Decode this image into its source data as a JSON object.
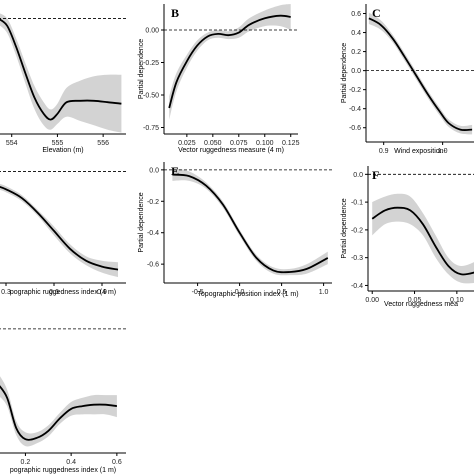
{
  "chart_data": [
    {
      "id": "elev",
      "type": "line",
      "panel_label": "",
      "xlabel": "Elevation (m)",
      "ylabel": "",
      "xticks": [
        554,
        555,
        556
      ],
      "yticks": [],
      "xlim": [
        553.7,
        556.5
      ],
      "ylim": [
        -0.8,
        0.1
      ],
      "ref_y": 0.0,
      "x": [
        553.7,
        553.9,
        554.1,
        554.3,
        554.5,
        554.7,
        554.85,
        555.0,
        555.2,
        555.5,
        555.8,
        556.1,
        556.4
      ],
      "y": [
        0.0,
        -0.05,
        -0.2,
        -0.38,
        -0.55,
        -0.66,
        -0.7,
        -0.66,
        -0.58,
        -0.57,
        -0.57,
        -0.58,
        -0.59
      ],
      "band_halfwidth": [
        0.04,
        0.05,
        0.06,
        0.07,
        0.08,
        0.08,
        0.07,
        0.07,
        0.1,
        0.14,
        0.17,
        0.19,
        0.2
      ]
    },
    {
      "id": "vrm4",
      "type": "line",
      "panel_label": "B",
      "xlabel": "Vector ruggedness measure (4 m)",
      "ylabel": "Partial dependence",
      "xticks": [
        0.025,
        0.05,
        0.075,
        0.1,
        0.125
      ],
      "xtick_labels": [
        "0.025",
        "0.050",
        "0.075",
        "0.100",
        "0.125"
      ],
      "yticks": [
        0.0,
        -0.25,
        -0.5,
        -0.75
      ],
      "ytick_labels": [
        "0.00",
        "-0.25",
        "-0.50",
        "-0.75"
      ],
      "xlim": [
        0.003,
        0.132
      ],
      "ylim": [
        -0.8,
        0.2
      ],
      "ref_y": 0.0,
      "x": [
        0.008,
        0.015,
        0.025,
        0.035,
        0.045,
        0.055,
        0.065,
        0.075,
        0.085,
        0.1,
        0.115,
        0.125
      ],
      "y": [
        -0.6,
        -0.4,
        -0.24,
        -0.12,
        -0.05,
        -0.03,
        -0.04,
        -0.02,
        0.04,
        0.09,
        0.11,
        0.1
      ],
      "band_halfwidth": [
        0.09,
        0.07,
        0.05,
        0.04,
        0.03,
        0.03,
        0.03,
        0.04,
        0.05,
        0.06,
        0.08,
        0.1
      ]
    },
    {
      "id": "windexp",
      "type": "line",
      "panel_label": "C",
      "xlabel": "Wind exposition-",
      "ylabel": "Partial dependence",
      "xticks": [
        0.9,
        1.0
      ],
      "xtick_labels": [
        "0.9",
        "1.0"
      ],
      "yticks": [
        0.6,
        0.4,
        0.2,
        0.0,
        -0.2,
        -0.4,
        -0.6
      ],
      "ytick_labels": [
        "0.6",
        "0.4",
        "0.2",
        "0.0",
        "-0.2",
        "-0.4",
        "-0.6"
      ],
      "xlim": [
        0.87,
        1.06
      ],
      "ylim": [
        -0.75,
        0.7
      ],
      "ref_y": 0.0,
      "x": [
        0.875,
        0.895,
        0.915,
        0.935,
        0.955,
        0.975,
        0.995,
        1.01,
        1.03,
        1.05
      ],
      "y": [
        0.55,
        0.48,
        0.34,
        0.15,
        -0.05,
        -0.25,
        -0.43,
        -0.55,
        -0.62,
        -0.62
      ],
      "band_halfwidth": [
        0.06,
        0.05,
        0.04,
        0.04,
        0.04,
        0.04,
        0.04,
        0.04,
        0.04,
        0.05
      ]
    },
    {
      "id": "tri4",
      "type": "line",
      "panel_label": "",
      "xlabel": "pographic ruggedness index (4 m)",
      "ylabel": "",
      "xticks": [
        0.3,
        0.6,
        0.9
      ],
      "xtick_labels": [
        "0.3",
        "0.6",
        "0.9"
      ],
      "yticks": [],
      "xlim": [
        0.25,
        1.05
      ],
      "ylim": [
        -0.75,
        0.05
      ],
      "ref_y": 0.0,
      "x": [
        0.25,
        0.3,
        0.4,
        0.5,
        0.6,
        0.7,
        0.8,
        0.9,
        1.0
      ],
      "y": [
        -0.1,
        -0.12,
        -0.18,
        -0.28,
        -0.4,
        -0.52,
        -0.6,
        -0.64,
        -0.66
      ],
      "band_halfwidth": [
        0.02,
        0.02,
        0.02,
        0.02,
        0.03,
        0.03,
        0.03,
        0.04,
        0.05
      ]
    },
    {
      "id": "tpi1",
      "type": "line",
      "panel_label": "E",
      "xlabel": "Topographic position index (1 m)",
      "ylabel": "Partial dependence",
      "xticks": [
        -0.5,
        0.0,
        0.5,
        1.0
      ],
      "xtick_labels": [
        "-0.5",
        "0.0",
        "0.5",
        "1.0"
      ],
      "yticks": [
        0.0,
        -0.2,
        -0.4,
        -0.6
      ],
      "ytick_labels": [
        "0.0",
        "-0.2",
        "-0.4",
        "-0.6"
      ],
      "xlim": [
        -0.9,
        1.1
      ],
      "ylim": [
        -0.72,
        0.05
      ],
      "ref_y": 0.0,
      "x": [
        -0.8,
        -0.6,
        -0.4,
        -0.2,
        0.0,
        0.2,
        0.4,
        0.6,
        0.8,
        1.05
      ],
      "y": [
        -0.03,
        -0.04,
        -0.1,
        -0.22,
        -0.4,
        -0.56,
        -0.64,
        -0.65,
        -0.63,
        -0.56
      ],
      "band_halfwidth": [
        0.04,
        0.03,
        0.02,
        0.02,
        0.02,
        0.02,
        0.02,
        0.02,
        0.03,
        0.04
      ]
    },
    {
      "id": "vrm1",
      "type": "line",
      "panel_label": "F",
      "xlabel": "Vector ruggedness mea",
      "ylabel": "Partial dependence",
      "xticks": [
        0.0,
        0.05,
        0.1
      ],
      "xtick_labels": [
        "0.00",
        "0.05",
        "0.10"
      ],
      "yticks": [
        0.0,
        -0.1,
        -0.2,
        -0.3,
        -0.4
      ],
      "ytick_labels": [
        "0.0",
        "-0.1",
        "-0.2",
        "-0.3",
        "-0.4"
      ],
      "xlim": [
        -0.005,
        0.125
      ],
      "ylim": [
        -0.42,
        0.03
      ],
      "ref_y": 0.0,
      "x": [
        0.0,
        0.015,
        0.03,
        0.045,
        0.06,
        0.075,
        0.09,
        0.105,
        0.125
      ],
      "y": [
        -0.16,
        -0.13,
        -0.12,
        -0.13,
        -0.18,
        -0.26,
        -0.33,
        -0.36,
        -0.35
      ],
      "band_halfwidth": [
        0.06,
        0.05,
        0.05,
        0.05,
        0.04,
        0.04,
        0.03,
        0.03,
        0.04
      ]
    },
    {
      "id": "tri1",
      "type": "line",
      "panel_label": "",
      "xlabel": "pographic ruggedness index (1 m)",
      "ylabel": "",
      "xticks": [
        0.2,
        0.4,
        0.6
      ],
      "xtick_labels": [
        "0.2",
        "0.4",
        "0.6"
      ],
      "yticks": [],
      "xlim": [
        0.08,
        0.64
      ],
      "ylim": [
        -0.9,
        0.05
      ],
      "ref_y": 0.0,
      "x": [
        0.08,
        0.12,
        0.16,
        0.2,
        0.25,
        0.3,
        0.35,
        0.4,
        0.45,
        0.5,
        0.55,
        0.6
      ],
      "y": [
        -0.4,
        -0.5,
        -0.72,
        -0.8,
        -0.79,
        -0.74,
        -0.65,
        -0.58,
        -0.56,
        -0.55,
        -0.55,
        -0.56
      ],
      "band_halfwidth": [
        0.08,
        0.06,
        0.05,
        0.05,
        0.04,
        0.04,
        0.04,
        0.05,
        0.06,
        0.07,
        0.07,
        0.08
      ]
    }
  ]
}
